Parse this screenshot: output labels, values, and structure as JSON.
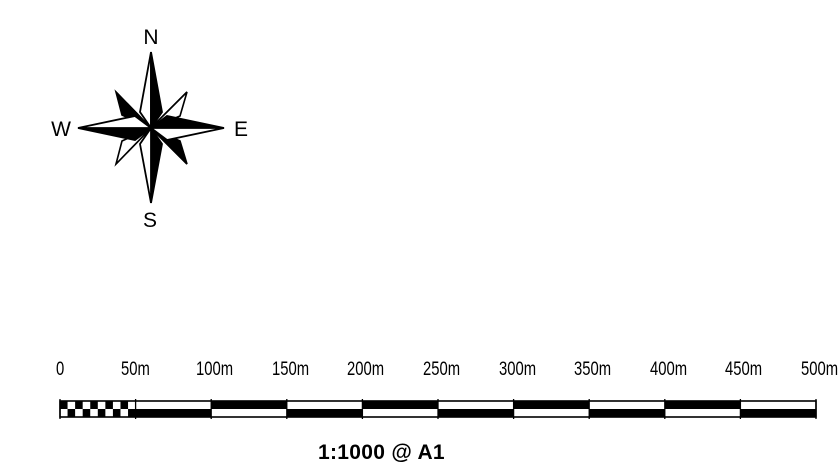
{
  "compass": {
    "north": "N",
    "south": "S",
    "east": "E",
    "west": "W",
    "icon": "compass-rose-icon"
  },
  "scale_bar": {
    "labels": [
      "0",
      "50m",
      "100m",
      "150m",
      "200m",
      "250m",
      "300m",
      "350m",
      "400m",
      "450m",
      "500m"
    ],
    "first_segment_subdivisions": 10,
    "colors": {
      "bar": "#000000",
      "fill": "#ffffff"
    }
  },
  "scale_text": "1:1000 @ A1"
}
